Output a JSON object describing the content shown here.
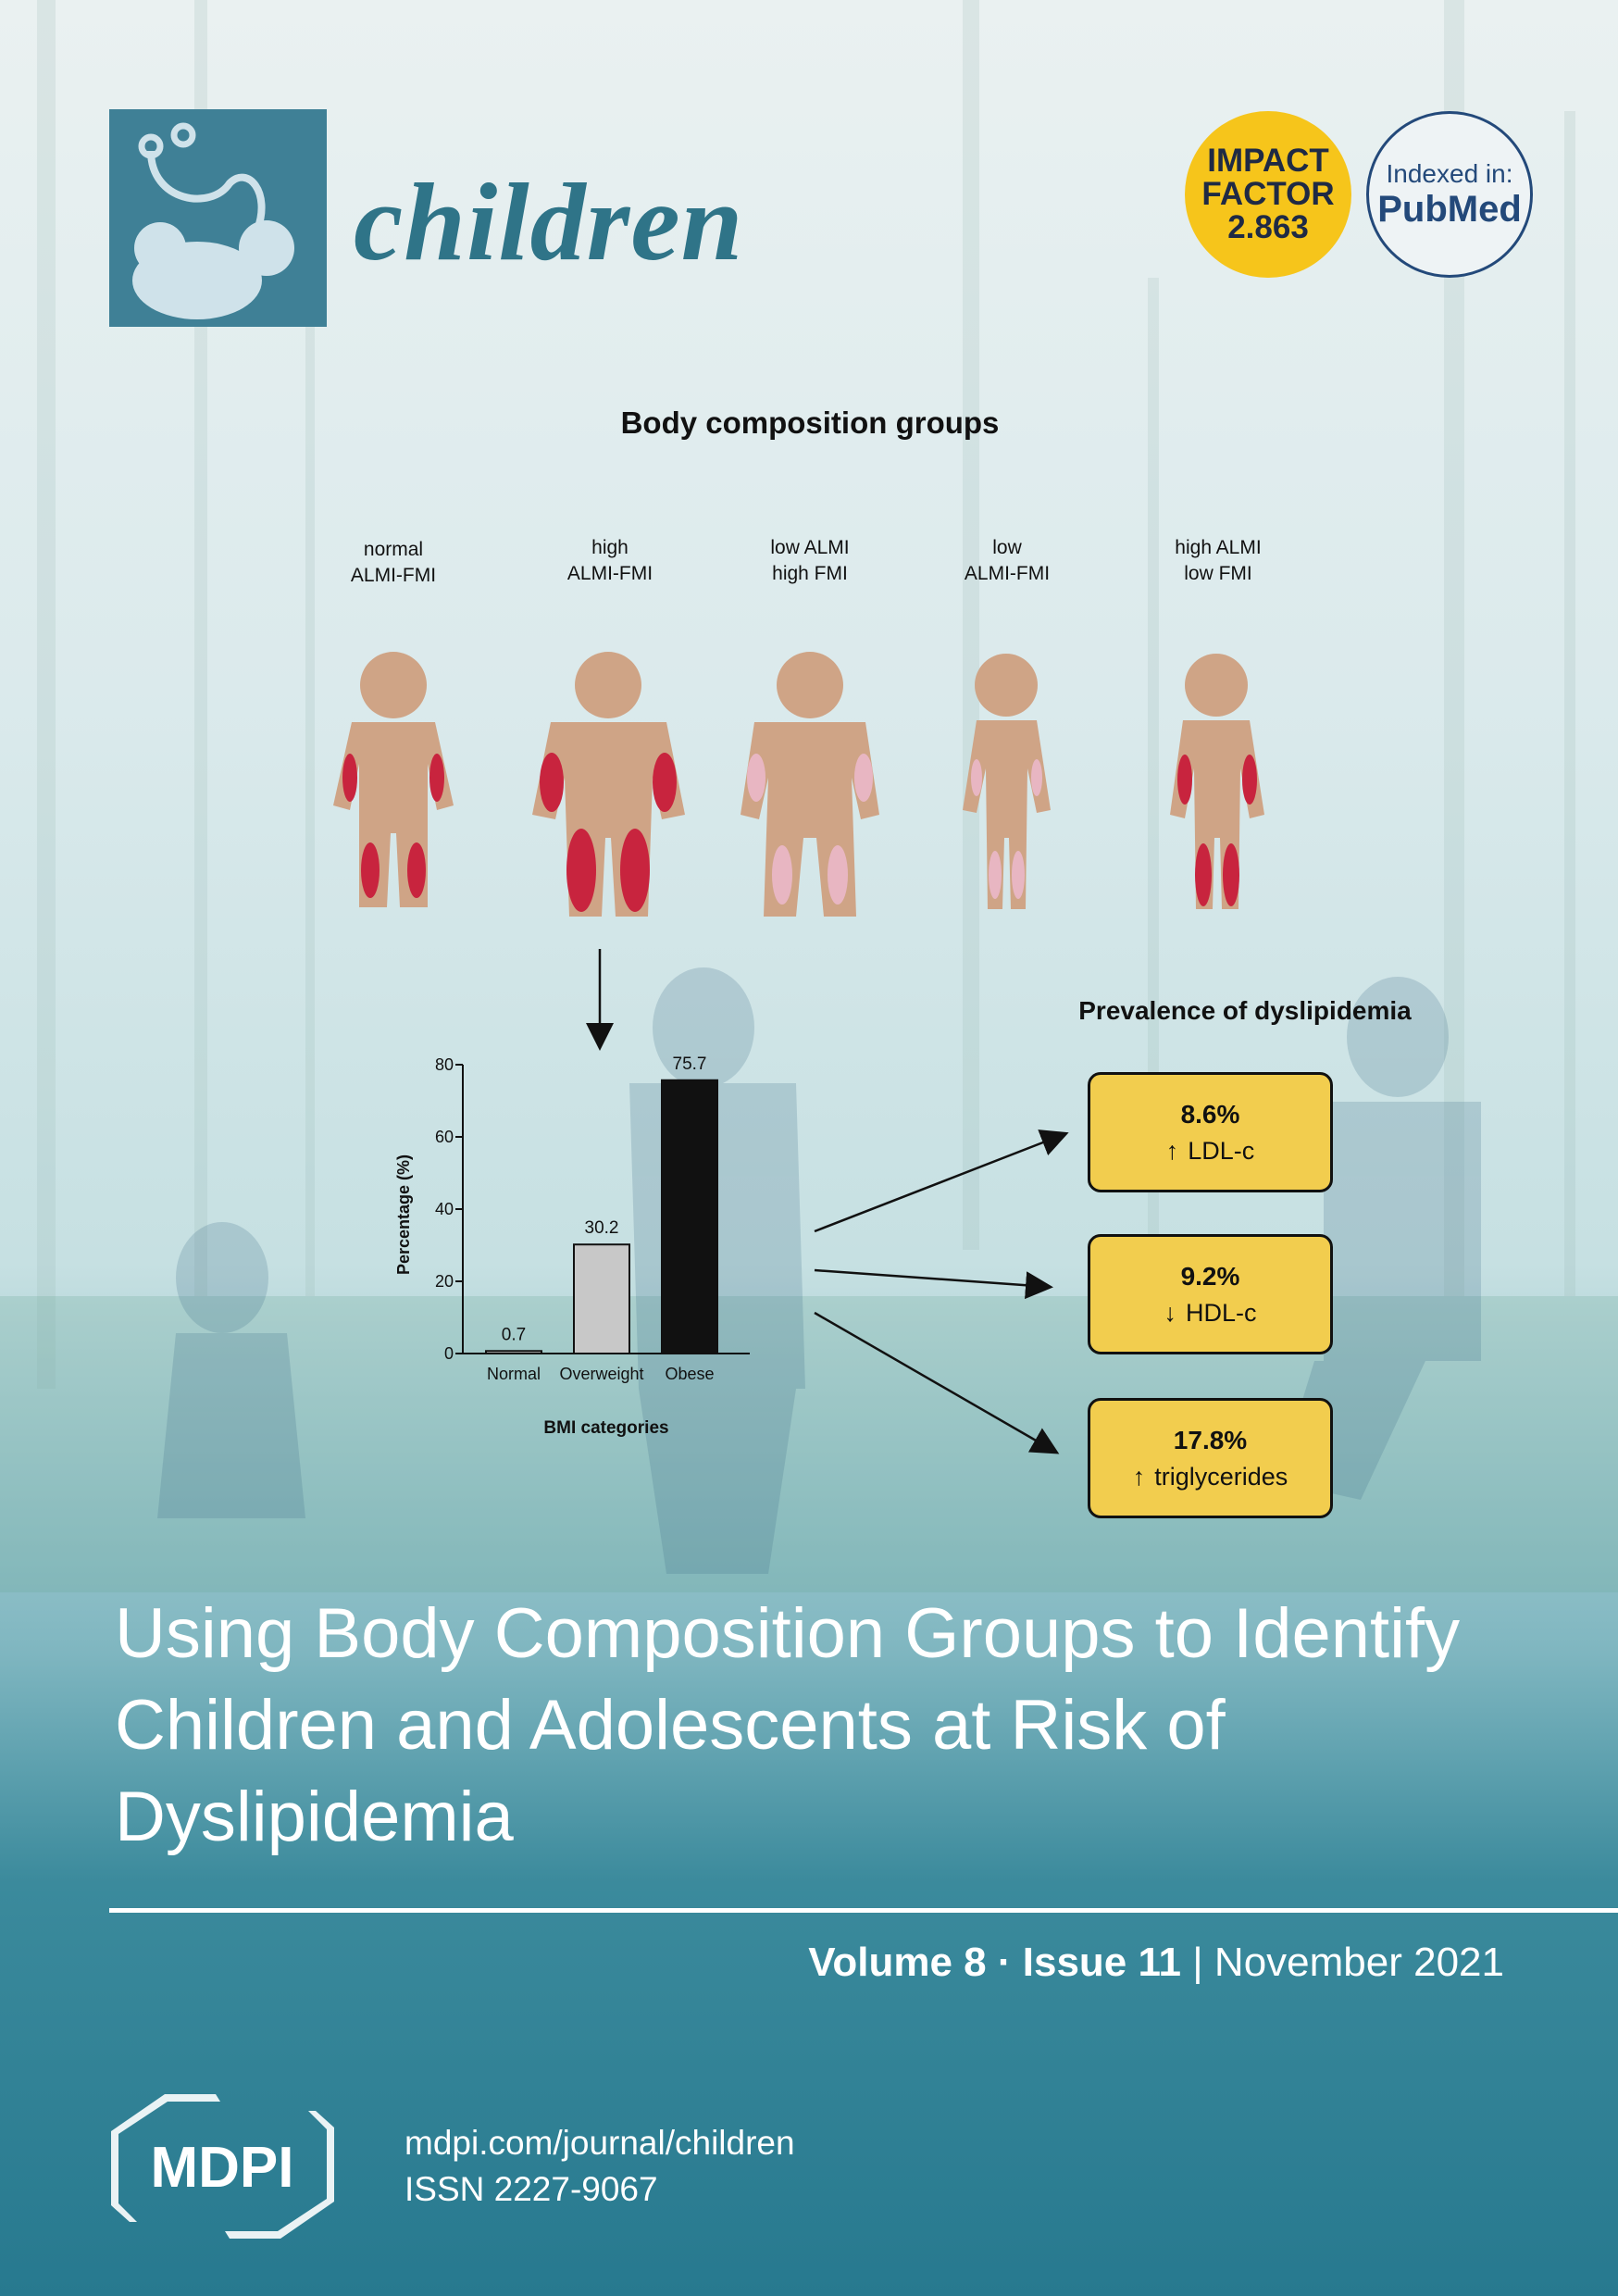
{
  "journal": {
    "name": "children"
  },
  "impact_factor": {
    "line1": "IMPACT",
    "line2": "FACTOR",
    "value": "2.863"
  },
  "indexed": {
    "label": "Indexed in:",
    "service": "PubMed"
  },
  "figure": {
    "groups_title": "Body composition groups",
    "groups": [
      {
        "line1": "normal",
        "line2": "ALMI-FMI"
      },
      {
        "line1": "high",
        "line2": "ALMI-FMI"
      },
      {
        "line1": "low ALMI",
        "line2": "high FMI"
      },
      {
        "line1": "low",
        "line2": "ALMI-FMI"
      },
      {
        "line1": "high ALMI",
        "line2": "low FMI"
      }
    ],
    "prevalence_title": "Prevalence of dyslipidemia",
    "prevalence": [
      {
        "pct": "8.6%",
        "direction": "up",
        "label": "LDL-c"
      },
      {
        "pct": "9.2%",
        "direction": "down",
        "label": "HDL-c"
      },
      {
        "pct": "17.8%",
        "direction": "up",
        "label": "triglycerides"
      }
    ]
  },
  "chart_data": {
    "type": "bar",
    "categories": [
      "Normal",
      "Overweight",
      "Obese"
    ],
    "values": [
      0.7,
      30.2,
      75.7
    ],
    "value_labels": [
      "0.7",
      "30.2",
      "75.7"
    ],
    "bar_colors": [
      "#c8c8c8",
      "#c8c8c8",
      "#111111"
    ],
    "xlabel": "BMI categories",
    "ylabel": "Percentage (%)",
    "ylim": [
      0,
      80
    ],
    "yticks": [
      "0",
      "20",
      "40",
      "60",
      "80"
    ]
  },
  "article": {
    "title": "Using Body Composition Groups to Identify Children and Adolescents at Risk of Dyslipidemia"
  },
  "issue": {
    "volume": "Volume 8",
    "sep": "·",
    "issue": "Issue 11",
    "bar": "|",
    "date": "November 2021"
  },
  "publisher": {
    "logo_text": "MDPI",
    "url": "mdpi.com/journal/children",
    "issn": "ISSN 2227-9067"
  }
}
